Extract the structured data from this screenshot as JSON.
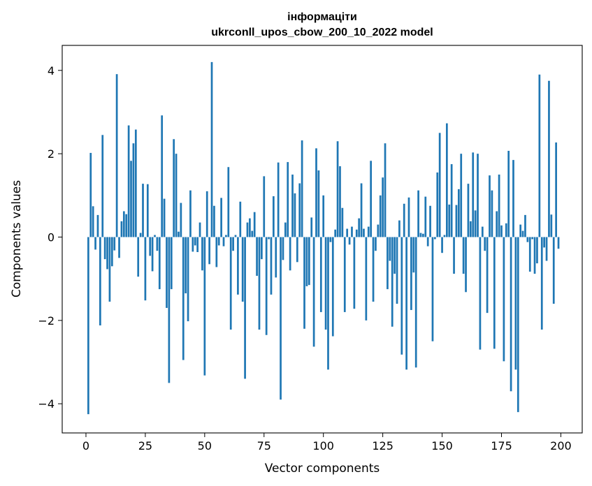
{
  "chart_data": {
    "type": "bar",
    "title": "інформаціти",
    "subtitle": "ukrconll_upos_cbow_200_10_2022 model",
    "xlabel": "Vector components",
    "ylabel": "Components values",
    "xlim": [
      -10,
      209
    ],
    "ylim": [
      -4.7,
      4.6
    ],
    "xticks": [
      0,
      25,
      50,
      75,
      100,
      125,
      150,
      175,
      200
    ],
    "yticks": [
      -4,
      -2,
      0,
      2,
      4
    ],
    "grid": false,
    "legend": "none",
    "bar_color": "#1f77b4",
    "x": [
      1,
      2,
      3,
      4,
      5,
      6,
      7,
      8,
      9,
      10,
      11,
      12,
      13,
      14,
      15,
      16,
      17,
      18,
      19,
      20,
      21,
      22,
      23,
      24,
      25,
      26,
      27,
      28,
      29,
      30,
      31,
      32,
      33,
      34,
      35,
      36,
      37,
      38,
      39,
      40,
      41,
      42,
      43,
      44,
      45,
      46,
      47,
      48,
      49,
      50,
      51,
      52,
      53,
      54,
      55,
      56,
      57,
      58,
      59,
      60,
      61,
      62,
      63,
      64,
      65,
      66,
      67,
      68,
      69,
      70,
      71,
      72,
      73,
      74,
      75,
      76,
      77,
      78,
      79,
      80,
      81,
      82,
      83,
      84,
      85,
      86,
      87,
      88,
      89,
      90,
      91,
      92,
      93,
      94,
      95,
      96,
      97,
      98,
      99,
      100,
      101,
      102,
      103,
      104,
      105,
      106,
      107,
      108,
      109,
      110,
      111,
      112,
      113,
      114,
      115,
      116,
      117,
      118,
      119,
      120,
      121,
      122,
      123,
      124,
      125,
      126,
      127,
      128,
      129,
      130,
      131,
      132,
      133,
      134,
      135,
      136,
      137,
      138,
      139,
      140,
      141,
      142,
      143,
      144,
      145,
      146,
      147,
      148,
      149,
      150,
      151,
      152,
      153,
      154,
      155,
      156,
      157,
      158,
      159,
      160,
      161,
      162,
      163,
      164,
      165,
      166,
      167,
      168,
      169,
      170,
      171,
      172,
      173,
      174,
      175,
      176,
      177,
      178,
      179,
      180,
      181,
      182,
      183,
      184,
      185,
      186,
      187,
      188,
      189,
      190,
      191,
      192,
      193,
      194,
      195,
      196,
      197,
      198,
      199
    ],
    "values": [
      -4.25,
      2.02,
      0.74,
      -0.3,
      0.53,
      -2.12,
      2.45,
      -0.53,
      -0.77,
      -1.55,
      -0.7,
      -0.32,
      3.91,
      -0.5,
      0.38,
      0.62,
      0.55,
      2.68,
      1.83,
      2.25,
      2.58,
      -0.95,
      0.1,
      1.28,
      -1.52,
      1.27,
      -0.45,
      -0.82,
      0.05,
      -0.33,
      -1.25,
      2.92,
      0.92,
      -1.7,
      -3.5,
      -1.25,
      2.35,
      2.0,
      0.13,
      0.82,
      -2.95,
      -1.35,
      -2.02,
      1.12,
      -0.35,
      -0.2,
      -0.36,
      0.35,
      -0.8,
      -3.32,
      1.1,
      -0.65,
      4.2,
      0.75,
      -0.72,
      -0.2,
      0.94,
      -0.22,
      0.05,
      1.68,
      -2.22,
      -0.33,
      0.05,
      -1.38,
      0.85,
      -1.55,
      -3.4,
      0.35,
      0.45,
      0.15,
      0.6,
      -0.93,
      -2.22,
      -0.53,
      1.46,
      -2.35,
      -0.05,
      -1.38,
      0.98,
      -0.97,
      1.79,
      -3.9,
      -0.55,
      0.35,
      1.8,
      -0.8,
      1.5,
      1.05,
      -0.6,
      1.29,
      2.32,
      -2.2,
      -1.18,
      -1.15,
      0.47,
      -2.63,
      2.13,
      1.6,
      -1.8,
      1.0,
      -2.22,
      -3.18,
      -0.12,
      -2.38,
      0.18,
      2.3,
      1.7,
      0.7,
      -1.8,
      0.2,
      -0.18,
      0.25,
      -1.72,
      0.18,
      0.45,
      1.29,
      0.2,
      -2.0,
      0.25,
      1.83,
      -1.55,
      -0.33,
      0.3,
      1.0,
      1.43,
      2.25,
      -1.25,
      -0.57,
      -2.15,
      -0.88,
      -1.6,
      0.4,
      -2.82,
      0.8,
      -3.18,
      0.95,
      -1.75,
      -0.85,
      -3.13,
      1.12,
      0.1,
      0.08,
      0.97,
      -0.22,
      0.75,
      -2.5,
      -0.05,
      1.55,
      2.5,
      -0.38,
      0.05,
      2.73,
      0.78,
      1.75,
      -0.88,
      0.77,
      1.15,
      2.0,
      -0.88,
      -1.32,
      1.28,
      0.38,
      2.03,
      0.64,
      2.0,
      -2.7,
      0.25,
      -0.33,
      -1.82,
      1.48,
      1.12,
      -2.68,
      0.62,
      1.5,
      0.28,
      -2.98,
      0.33,
      2.07,
      -3.7,
      1.85,
      -3.18,
      -4.2,
      0.3,
      0.15,
      0.53,
      -0.12,
      -0.83,
      -0.05,
      -0.88,
      -0.63,
      3.9,
      -2.22,
      -0.25,
      -0.57,
      3.75,
      0.54,
      -1.6,
      2.27,
      -0.28
    ]
  }
}
